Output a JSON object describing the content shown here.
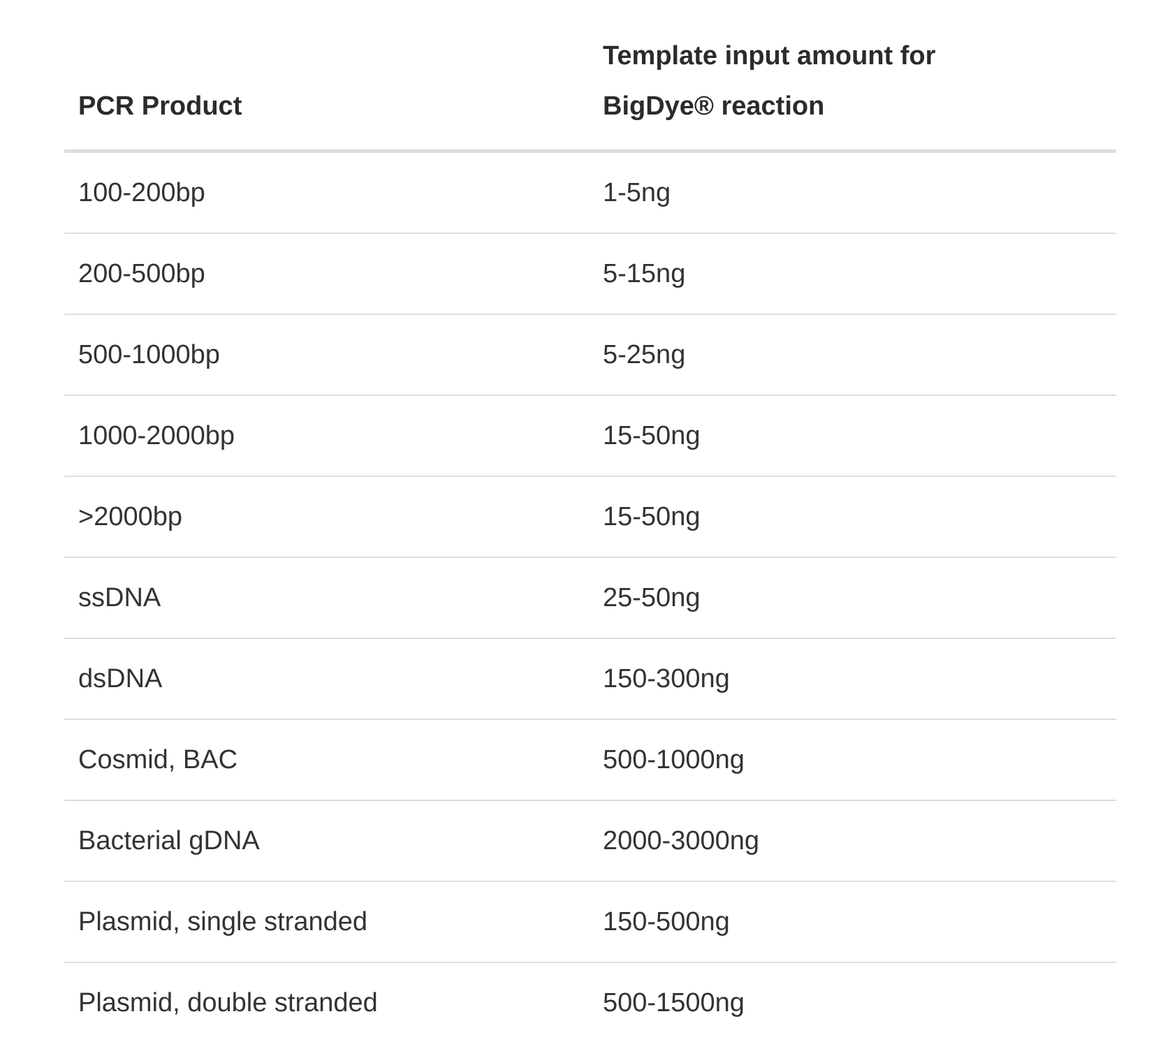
{
  "table": {
    "headers": {
      "col1": "PCR Product",
      "col2_line1": "Template input amount for",
      "col2_line2": "BigDye® reaction"
    },
    "rows": [
      {
        "product": "100-200bp",
        "amount": "1-5ng"
      },
      {
        "product": "200-500bp",
        "amount": "5-15ng"
      },
      {
        "product": "500-1000bp",
        "amount": "5-25ng"
      },
      {
        "product": "1000-2000bp",
        "amount": "15-50ng"
      },
      {
        "product": ">2000bp",
        "amount": "15-50ng"
      },
      {
        "product": "ssDNA",
        "amount": "25-50ng"
      },
      {
        "product": "dsDNA",
        "amount": "150-300ng"
      },
      {
        "product": "Cosmid, BAC",
        "amount": "500-1000ng"
      },
      {
        "product": "Bacterial gDNA",
        "amount": "2000-3000ng"
      },
      {
        "product": "Plasmid, single stranded",
        "amount": "150-500ng"
      },
      {
        "product": "Plasmid, double stranded",
        "amount": "500-1500ng"
      }
    ]
  }
}
